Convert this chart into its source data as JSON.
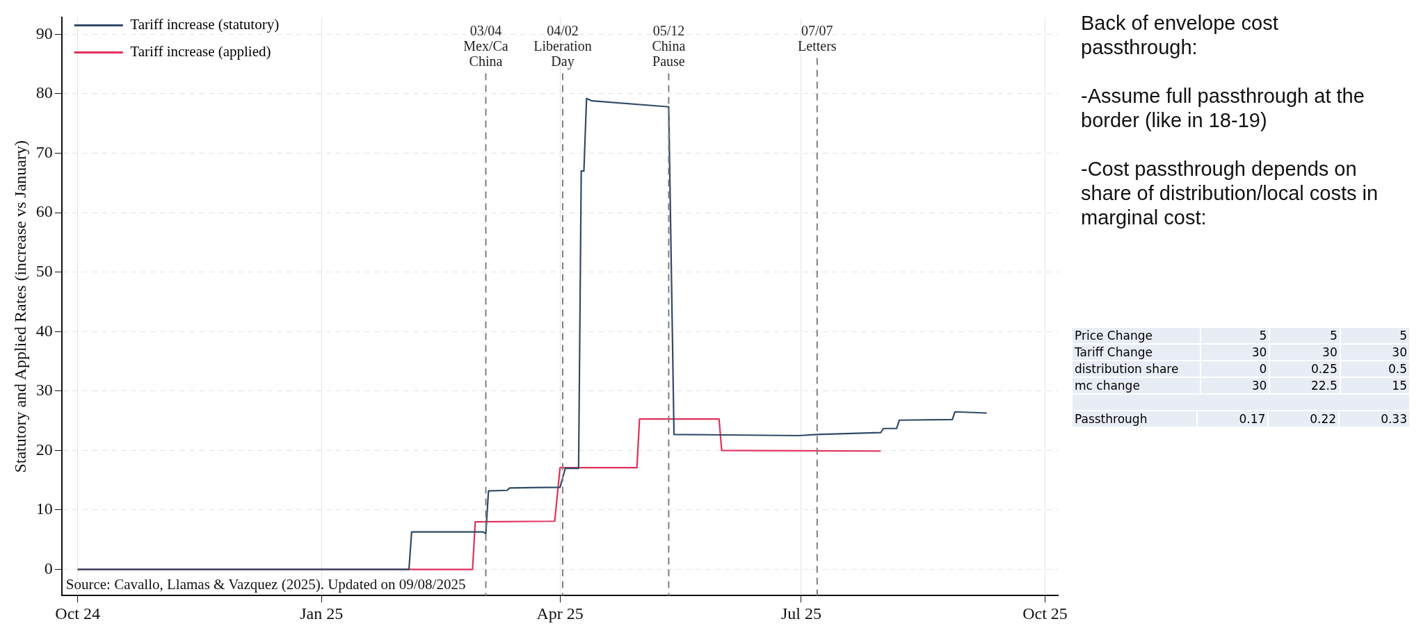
{
  "chart_data": [
    {
      "type": "line",
      "ylabel": "Statutory and Applied Rates (increase vs January)",
      "xlim": [
        "2024-09-25",
        "2025-10-06"
      ],
      "xticks": [
        {
          "value": "2024-10-01",
          "label": "Oct 24"
        },
        {
          "value": "2025-01-01",
          "label": "Jan 25"
        },
        {
          "value": "2025-04-01",
          "label": "Apr 25"
        },
        {
          "value": "2025-07-01",
          "label": "Jul 25"
        },
        {
          "value": "2025-10-01",
          "label": "Oct 25"
        }
      ],
      "ylim": [
        -4.4,
        92.8
      ],
      "yticks": [
        0,
        10,
        20,
        30,
        40,
        50,
        60,
        70,
        80,
        90
      ],
      "grid": true,
      "legend": "top left",
      "line_style": "solid",
      "marker": "none",
      "series": [
        {
          "name": "Tariff increase (statutory)",
          "color": "#2f4b66",
          "x": [
            "2024-10-01",
            "2025-02-03",
            "2025-02-04",
            "2025-03-03",
            "2025-03-04",
            "2025-03-05",
            "2025-03-12",
            "2025-03-13",
            "2025-04-01",
            "2025-04-03",
            "2025-04-08",
            "2025-04-09",
            "2025-04-10",
            "2025-04-11",
            "2025-04-13",
            "2025-05-12",
            "2025-05-14",
            "2025-06-30",
            "2025-07-07",
            "2025-07-31",
            "2025-08-01",
            "2025-08-06",
            "2025-08-07",
            "2025-08-27",
            "2025-08-28",
            "2025-09-09"
          ],
          "values": [
            0,
            0,
            6.3,
            6.3,
            6.0,
            13.2,
            13.3,
            13.7,
            13.8,
            17.0,
            17.0,
            67,
            67,
            79.2,
            78.8,
            77.8,
            22.7,
            22.5,
            22.7,
            23.0,
            23.7,
            23.7,
            25.1,
            25.2,
            26.5,
            26.3
          ]
        },
        {
          "name": "Tariff increase (applied)",
          "color": "#e0305a",
          "x": [
            "2024-10-01",
            "2025-02-27",
            "2025-02-28",
            "2025-03-30",
            "2025-04-01",
            "2025-04-30",
            "2025-05-01",
            "2025-05-31",
            "2025-06-01",
            "2025-07-31"
          ],
          "values": [
            0,
            0,
            8.0,
            8.1,
            17.1,
            17.1,
            25.3,
            25.3,
            20.0,
            19.9
          ]
        }
      ],
      "ref_lines": [
        {
          "axis": "x",
          "value": "2025-03-04",
          "label": "03/04\nMex/Ca\nChina",
          "color": "#7f7f7f",
          "line_style": "dashed"
        },
        {
          "axis": "x",
          "value": "2025-04-02",
          "label": "04/02\nLiberation\nDay",
          "color": "#7f7f7f",
          "line_style": "dashed"
        },
        {
          "axis": "x",
          "value": "2025-05-12",
          "label": "05/12\nChina\nPause",
          "color": "#7f7f7f",
          "line_style": "dashed"
        },
        {
          "axis": "x",
          "value": "2025-07-07",
          "label": "07/07\nLetters",
          "color": "#7f7f7f",
          "line_style": "dashed"
        }
      ],
      "annotations": [
        "Source: Cavallo, Llamas & Vazquez (2025). Updated on 09/08/2025"
      ]
    },
    {
      "type": "other",
      "title": "Back of envelope cost passthrough:",
      "annotations": [
        "-Assume full passthrough at the border (like in 18-19)",
        "-Cost passthrough depends on share of distribution/local costs in marginal cost:"
      ]
    },
    {
      "type": "other",
      "annotations": [
        "Price Change",
        "5",
        "5",
        "5",
        "Tariff Change",
        "30",
        "30",
        "30",
        "distribution share",
        "0",
        "0.25",
        "0.5",
        "mc change",
        "30",
        "22.5",
        "15"
      ]
    },
    {
      "type": "other",
      "annotations": [
        "Passthrough",
        "0.17",
        "0.22",
        "0.33"
      ]
    }
  ]
}
